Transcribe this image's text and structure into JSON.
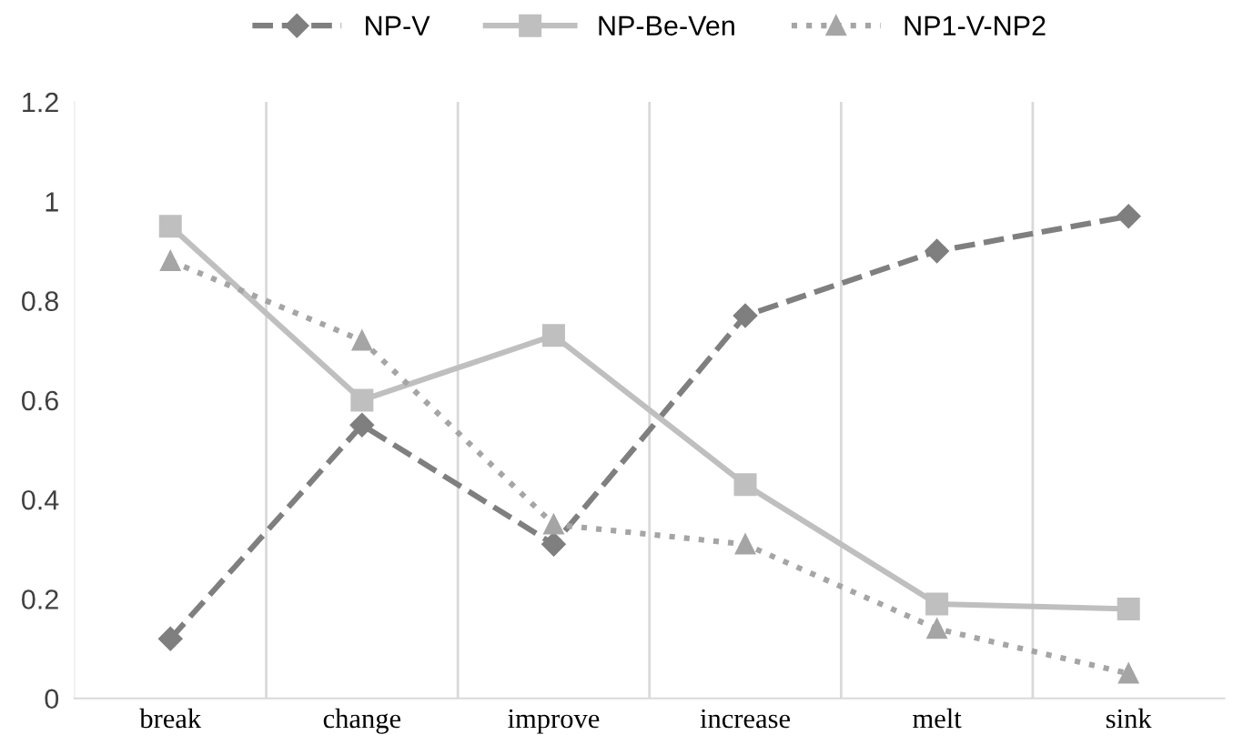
{
  "chart_data": {
    "type": "line",
    "categories": [
      "break",
      "change",
      "improve",
      "increase",
      "melt",
      "sink"
    ],
    "series": [
      {
        "name": "NP-V",
        "color": "#7f7f7f",
        "marker": "diamond",
        "line_style": "dashed",
        "values": [
          0.12,
          0.55,
          0.31,
          0.77,
          0.9,
          0.97
        ]
      },
      {
        "name": "NP-Be-Ven",
        "color": "#bfbfbf",
        "marker": "square",
        "line_style": "solid",
        "values": [
          0.95,
          0.6,
          0.73,
          0.43,
          0.19,
          0.18
        ]
      },
      {
        "name": "NP1-V-NP2",
        "color": "#a5a5a5",
        "marker": "triangle",
        "line_style": "dotted",
        "values": [
          0.88,
          0.72,
          0.35,
          0.31,
          0.14,
          0.05
        ]
      }
    ],
    "ylim": [
      0,
      1.2
    ],
    "yticks": [
      0,
      0.2,
      0.4,
      0.6,
      0.8,
      1,
      1.2
    ],
    "grid": "x",
    "legend": "top"
  }
}
